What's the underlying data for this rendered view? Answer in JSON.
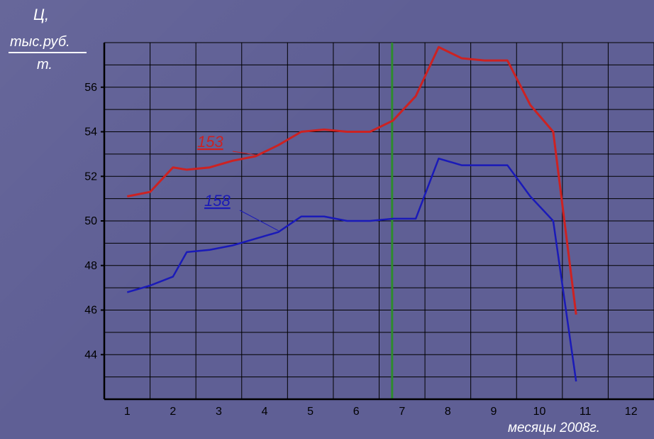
{
  "chart_data": {
    "type": "line",
    "ylabel": {
      "line1": "Ц,",
      "line2": "тыс.руб.",
      "line3": "т."
    },
    "xlabel": "месяцы 2008г.",
    "x_ticks": [
      "1",
      "2",
      "3",
      "4",
      "5",
      "6",
      "7",
      "8",
      "9",
      "10",
      "11",
      "12"
    ],
    "y_ticks": [
      44,
      46,
      48,
      50,
      52,
      54,
      56
    ],
    "xlim": [
      0.5,
      12.5
    ],
    "ylim": [
      42,
      58
    ],
    "grid": true,
    "marker_line_x": 7,
    "colors": {
      "grid": "#000000",
      "marker": "#2e8b2e",
      "series_153": "#cc2222",
      "series_158": "#1a1ab8"
    },
    "series": [
      {
        "name": "153",
        "color": "#cc2222",
        "x": [
          1.0,
          1.5,
          2.0,
          2.3,
          2.8,
          3.3,
          3.8,
          4.3,
          4.8,
          5.3,
          5.8,
          6.3,
          6.8,
          7.3,
          7.8,
          8.3,
          8.8,
          9.3,
          9.8,
          10.3,
          10.8
        ],
        "y": [
          51.1,
          51.3,
          52.4,
          52.3,
          52.4,
          52.7,
          52.9,
          53.4,
          54.0,
          54.1,
          54.0,
          54.0,
          54.5,
          55.6,
          57.8,
          57.3,
          57.2,
          57.2,
          55.2,
          54.0,
          45.8
        ]
      },
      {
        "name": "158",
        "color": "#1a1ab8",
        "x": [
          1.0,
          1.5,
          2.0,
          2.3,
          2.8,
          3.3,
          3.8,
          4.3,
          4.8,
          5.3,
          5.8,
          6.3,
          6.8,
          7.3,
          7.8,
          8.3,
          8.8,
          9.3,
          9.8,
          10.3,
          10.8
        ],
        "y": [
          46.8,
          47.1,
          47.5,
          48.6,
          48.7,
          48.9,
          49.2,
          49.5,
          50.2,
          50.2,
          50.0,
          50.0,
          50.1,
          50.1,
          52.8,
          52.5,
          52.5,
          52.5,
          51.1,
          50.0,
          42.8
        ]
      }
    ]
  }
}
